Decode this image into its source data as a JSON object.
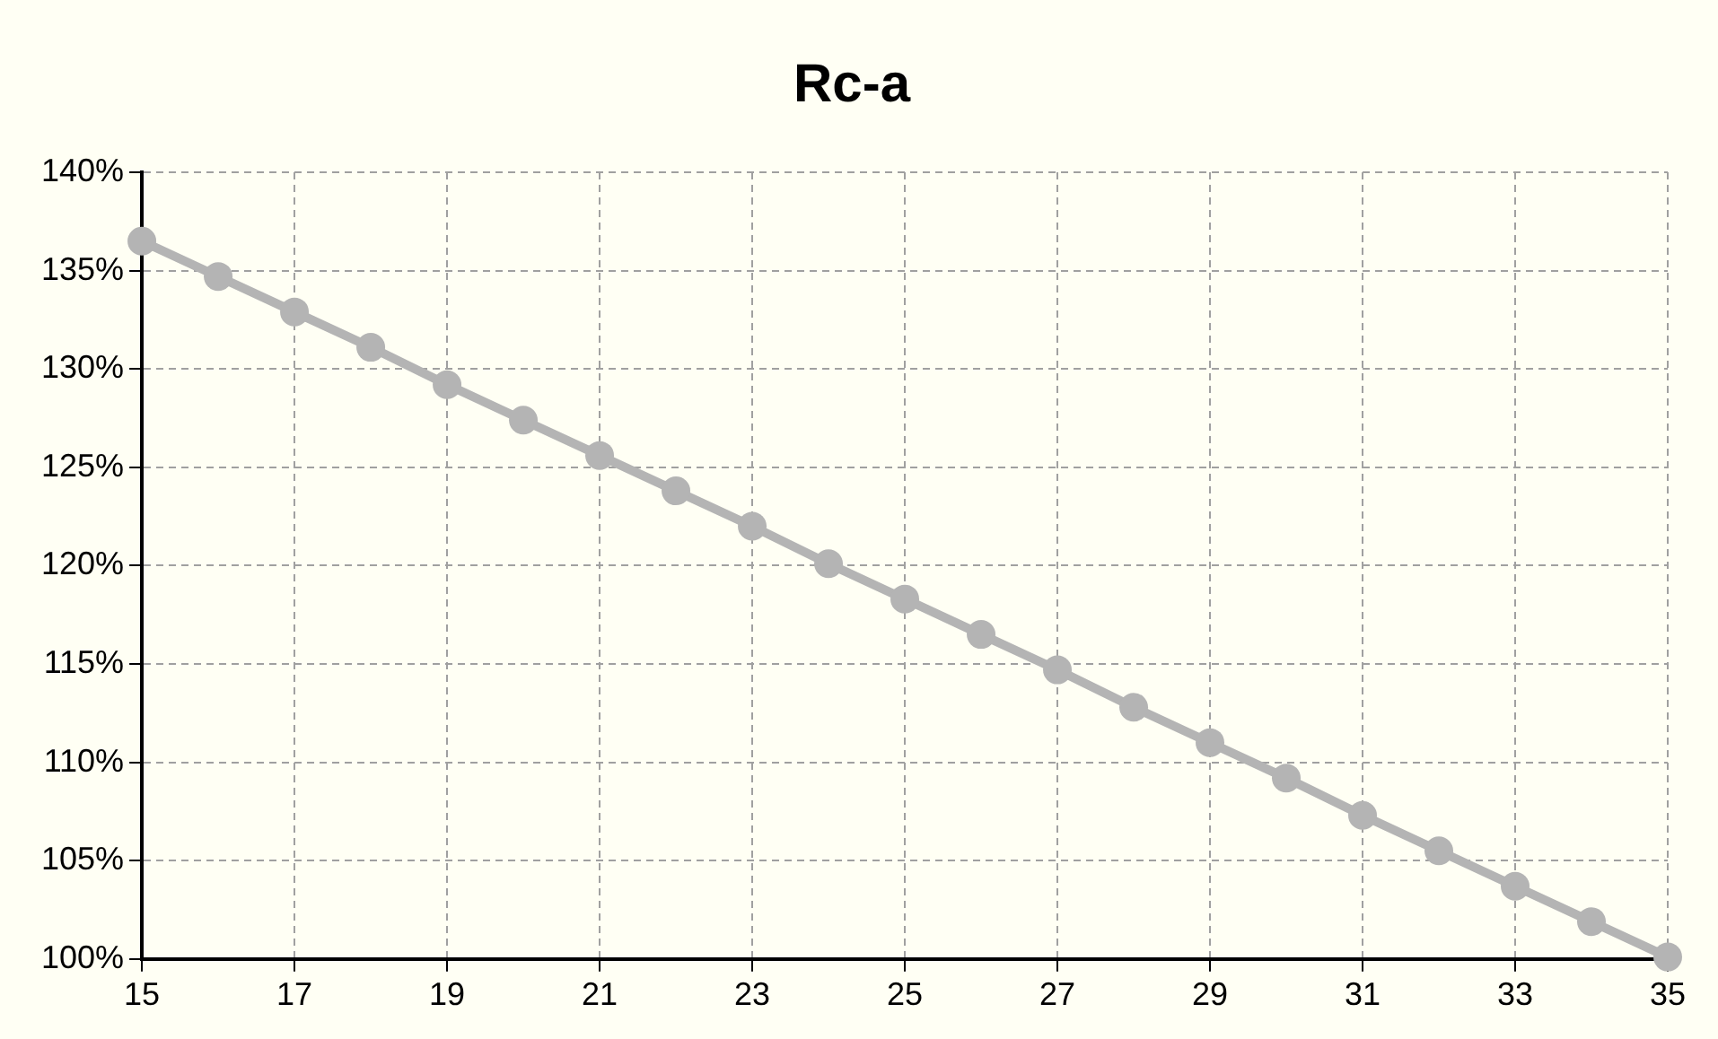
{
  "chart_data": {
    "type": "line",
    "title": "Rc-a",
    "x": [
      15,
      16,
      17,
      18,
      19,
      20,
      21,
      22,
      23,
      24,
      25,
      26,
      27,
      28,
      29,
      30,
      31,
      32,
      33,
      34,
      35
    ],
    "series": [
      {
        "color": "#b4b4b4",
        "values": [
          136.5,
          134.7,
          132.9,
          131.1,
          129.2,
          127.4,
          125.6,
          123.8,
          122.0,
          120.1,
          118.3,
          116.5,
          114.7,
          112.8,
          111.0,
          109.2,
          107.3,
          105.5,
          103.7,
          101.9,
          100.1
        ]
      }
    ],
    "xlim": [
      15,
      35
    ],
    "xticks": [
      15,
      17,
      19,
      21,
      23,
      25,
      27,
      29,
      31,
      33,
      35
    ],
    "ylim": [
      100,
      140
    ],
    "yticks": [
      {
        "value": 100,
        "label": "100%"
      },
      {
        "value": 105,
        "label": "105%"
      },
      {
        "value": 110,
        "label": "110%"
      },
      {
        "value": 115,
        "label": "115%"
      },
      {
        "value": 120,
        "label": "120%"
      },
      {
        "value": 125,
        "label": "125%"
      },
      {
        "value": 130,
        "label": "130%"
      },
      {
        "value": 135,
        "label": "135%"
      },
      {
        "value": 140,
        "label": "140%"
      }
    ],
    "grid": true,
    "legend": false,
    "marker": "circle",
    "line_style": "solid"
  }
}
